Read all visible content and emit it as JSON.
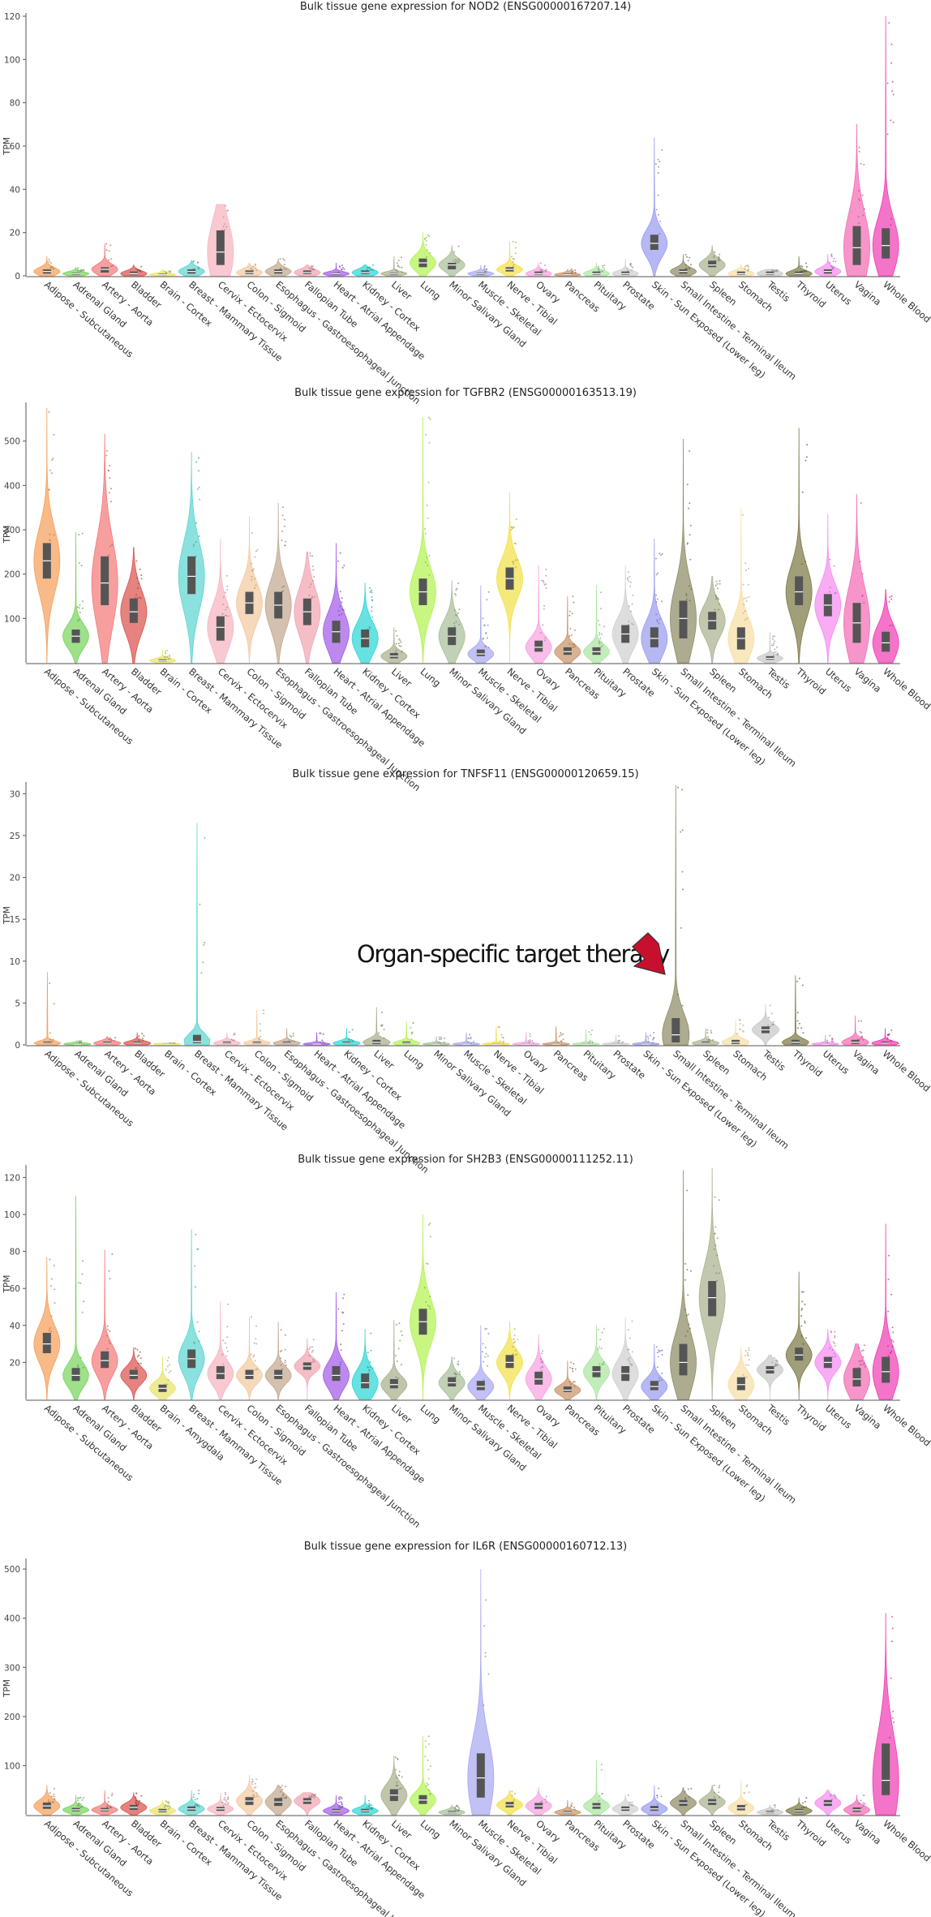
{
  "chart_data": [
    {
      "type": "violin",
      "title": "Bulk tissue gene expression for NOD2 (ENSG00000167207.14)",
      "ylabel": "TPM",
      "ylim": [
        0,
        120
      ],
      "yticks": [
        0,
        20,
        40,
        60,
        80,
        100,
        120
      ],
      "categories": [
        "Adipose - Subcutaneous",
        "Adrenal Gland",
        "Artery - Aorta",
        "Bladder",
        "Brain - Cortex",
        "Breast - Mammary Tissue",
        "Cervix - Ectocervix",
        "Colon - Sigmoid",
        "Esophagus - Gastroesophageal Junction",
        "Fallopian Tube",
        "Heart - Atrial Appendage",
        "Kidney - Cortex",
        "Liver",
        "Lung",
        "Minor Salivary Gland",
        "Muscle - Skeletal",
        "Nerve - Tibial",
        "Ovary",
        "Pancreas",
        "Pituitary",
        "Prostate",
        "Skin - Sun Exposed (Lower leg)",
        "Small Intestine - Terminal Ileum",
        "Spleen",
        "Stomach",
        "Testis",
        "Thyroid",
        "Uterus",
        "Vagina",
        "Whole Blood"
      ],
      "colors": [
        "#f5a05a",
        "#7ad35f",
        "#f47a7a",
        "#d9534f",
        "#e8e36a",
        "#5fd6d0",
        "#f7b5c0",
        "#f3c9a0",
        "#c4a890",
        "#f1a6b1",
        "#a35ce8",
        "#2fd6d6",
        "#a8b08a",
        "#b3f252",
        "#a8bf9a",
        "#a9a9f2",
        "#f2e04a",
        "#f8a2e0",
        "#c99467",
        "#aae6a0",
        "#d0d0d0",
        "#9a9cf0",
        "#8f8c65",
        "#a9b38f",
        "#f7dfa6",
        "#c8c8c8",
        "#7d7a45",
        "#f58cf0",
        "#f46cb6",
        "#f03fb4"
      ],
      "medians": [
        2,
        1,
        3,
        1,
        0.5,
        2,
        11,
        1.5,
        2,
        1.5,
        1,
        1.5,
        1,
        6,
        5,
        1,
        3,
        1,
        0.5,
        1,
        1,
        15,
        2,
        5,
        1,
        1,
        1,
        2,
        13,
        14
      ],
      "q1": [
        1,
        0.5,
        1.5,
        0.5,
        0.2,
        1,
        5,
        0.8,
        1,
        0.8,
        0.5,
        0.8,
        0.5,
        4,
        3,
        0.5,
        2,
        0.5,
        0.2,
        0.5,
        0.5,
        12,
        1,
        4,
        0.5,
        0.5,
        0.5,
        1,
        5,
        8
      ],
      "q3": [
        3,
        1.5,
        4,
        2,
        1,
        3,
        21,
        2.5,
        3,
        2.5,
        1.5,
        2.5,
        1.5,
        8,
        6,
        1.5,
        4,
        2,
        1,
        2,
        2,
        19,
        3,
        7,
        2,
        2,
        2,
        3,
        23,
        22
      ],
      "max": [
        9,
        4,
        15,
        5,
        3,
        7,
        33,
        6,
        8,
        5,
        6,
        5,
        9,
        20,
        14,
        5,
        16,
        6,
        3,
        6,
        8,
        64,
        10,
        14,
        5,
        3,
        9,
        10,
        70,
        120
      ]
    },
    {
      "type": "violin",
      "title": "Bulk tissue gene expression for TGFBR2 (ENSG00000163513.19)",
      "ylabel": "TPM",
      "ylim": [
        0,
        580
      ],
      "yticks": [
        100,
        200,
        300,
        400,
        500
      ],
      "categories": [
        "Adipose - Subcutaneous",
        "Adrenal Gland",
        "Artery - Aorta",
        "Bladder",
        "Brain - Cortex",
        "Breast - Mammary Tissue",
        "Cervix - Ectocervix",
        "Colon - Sigmoid",
        "Esophagus - Gastroesophageal Junction",
        "Fallopian Tube",
        "Heart - Atrial Appendage",
        "Kidney - Cortex",
        "Liver",
        "Lung",
        "Minor Salivary Gland",
        "Muscle - Skeletal",
        "Nerve - Tibial",
        "Ovary",
        "Pancreas",
        "Pituitary",
        "Prostate",
        "Skin - Sun Exposed (Lower leg)",
        "Small Intestine - Terminal Ileum",
        "Spleen",
        "Stomach",
        "Testis",
        "Thyroid",
        "Uterus",
        "Vagina",
        "Whole Blood"
      ],
      "colors": [
        "#f5a05a",
        "#7ad35f",
        "#f47a7a",
        "#d9534f",
        "#e8e36a",
        "#5fd6d0",
        "#f7b5c0",
        "#f3c9a0",
        "#c4a890",
        "#f1a6b1",
        "#a35ce8",
        "#2fd6d6",
        "#a8b08a",
        "#b3f252",
        "#a8bf9a",
        "#a9a9f2",
        "#f2e04a",
        "#f8a2e0",
        "#c99467",
        "#aae6a0",
        "#d0d0d0",
        "#9a9cf0",
        "#8f8c65",
        "#a9b38f",
        "#f7dfa6",
        "#c8c8c8",
        "#7d7a45",
        "#f58cf0",
        "#f46cb6",
        "#f03fb4"
      ],
      "medians": [
        230,
        60,
        180,
        115,
        5,
        195,
        80,
        135,
        130,
        115,
        70,
        55,
        15,
        160,
        60,
        20,
        190,
        35,
        25,
        25,
        65,
        55,
        100,
        95,
        55,
        10,
        160,
        130,
        90,
        45
      ],
      "q1": [
        190,
        45,
        130,
        90,
        3,
        155,
        50,
        110,
        100,
        85,
        45,
        35,
        10,
        130,
        40,
        15,
        165,
        25,
        18,
        18,
        45,
        35,
        55,
        75,
        30,
        7,
        130,
        105,
        45,
        25
      ],
      "q3": [
        270,
        75,
        240,
        145,
        8,
        240,
        105,
        160,
        160,
        145,
        95,
        75,
        22,
        190,
        80,
        30,
        215,
        50,
        35,
        35,
        85,
        80,
        140,
        115,
        80,
        15,
        195,
        155,
        135,
        70
      ],
      "max": [
        575,
        295,
        515,
        260,
        30,
        475,
        280,
        330,
        360,
        250,
        270,
        180,
        80,
        555,
        185,
        175,
        385,
        220,
        150,
        175,
        220,
        280,
        505,
        195,
        350,
        70,
        530,
        335,
        380,
        165
      ]
    },
    {
      "type": "violin",
      "title": "Bulk tissue gene expression for TNFSF11 (ENSG00000120659.15)",
      "ylabel": "TPM",
      "ylim": [
        0,
        31
      ],
      "yticks": [
        0,
        5,
        10,
        15,
        20,
        25,
        30
      ],
      "categories": [
        "Adipose - Subcutaneous",
        "Adrenal Gland",
        "Artery - Aorta",
        "Bladder",
        "Brain - Cortex",
        "Breast - Mammary Tissue",
        "Cervix - Ectocervix",
        "Colon - Sigmoid",
        "Esophagus - Gastroesophageal Junction",
        "Heart - Atrial Appendage",
        "Kidney - Cortex",
        "Liver",
        "Lung",
        "Minor Salivary Gland",
        "Muscle - Skeletal",
        "Nerve - Tibial",
        "Ovary",
        "Pancreas",
        "Pituitary",
        "Prostate",
        "Skin - Sun Exposed (Lower leg)",
        "Small Intestine - Terminal Ileum",
        "Spleen",
        "Stomach",
        "Testis",
        "Thyroid",
        "Uterus",
        "Vagina",
        "Whole Blood"
      ],
      "colors": [
        "#f5a05a",
        "#7ad35f",
        "#f47a7a",
        "#d9534f",
        "#e8e36a",
        "#5fd6d0",
        "#f7b5c0",
        "#f3c9a0",
        "#c4a890",
        "#a35ce8",
        "#2fd6d6",
        "#a8b08a",
        "#b3f252",
        "#a8bf9a",
        "#a9a9f2",
        "#f2e04a",
        "#f8a2e0",
        "#c99467",
        "#aae6a0",
        "#d0d0d0",
        "#9a9cf0",
        "#8f8c65",
        "#a9b38f",
        "#f7dfa6",
        "#c8c8c8",
        "#7d7a45",
        "#f58cf0",
        "#f46cb6",
        "#f03fb4"
      ],
      "medians": [
        0.2,
        0.1,
        0.2,
        0.2,
        0.1,
        0.4,
        0.2,
        0.2,
        0.2,
        0.1,
        0.2,
        0.3,
        0.2,
        0.1,
        0.1,
        0.1,
        0.1,
        0.1,
        0.1,
        0.1,
        0.1,
        1.2,
        0.2,
        0.3,
        1.8,
        0.3,
        0.1,
        0.3,
        0.2
      ],
      "q1": [
        0.1,
        0.05,
        0.1,
        0.1,
        0.05,
        0.2,
        0.1,
        0.1,
        0.1,
        0.05,
        0.1,
        0.1,
        0.1,
        0.05,
        0.05,
        0.05,
        0.05,
        0.05,
        0.05,
        0.05,
        0.05,
        0.3,
        0.1,
        0.1,
        1.4,
        0.1,
        0.05,
        0.1,
        0.1
      ],
      "q3": [
        0.4,
        0.2,
        0.4,
        0.4,
        0.2,
        1.2,
        0.4,
        0.4,
        0.4,
        0.2,
        0.4,
        0.6,
        0.4,
        0.2,
        0.2,
        0.2,
        0.2,
        0.2,
        0.2,
        0.2,
        0.2,
        3.2,
        0.4,
        0.6,
        2.2,
        0.6,
        0.2,
        0.6,
        0.4
      ],
      "max": [
        8.7,
        0.5,
        1,
        1.5,
        0.2,
        26.5,
        1.5,
        4.2,
        2,
        1.5,
        2,
        4.5,
        2.8,
        1,
        1.5,
        2.2,
        1.5,
        2.2,
        1.8,
        1.2,
        1.5,
        31,
        2,
        3,
        4.8,
        8.3,
        1.2,
        3.5,
        2
      ]
    },
    {
      "type": "violin",
      "title": "Bulk tissue gene expression for SH2B3 (ENSG00000111252.11)",
      "ylabel": "TPM",
      "ylim": [
        0,
        125
      ],
      "yticks": [
        20,
        40,
        60,
        80,
        100,
        120
      ],
      "categories": [
        "Adipose - Subcutaneous",
        "Adrenal Gland",
        "Artery - Aorta",
        "Bladder",
        "Brain - Amygdala",
        "Breast - Mammary Tissue",
        "Cervix - Ectocervix",
        "Colon - Sigmoid",
        "Esophagus - Gastroesophageal Junction",
        "Fallopian Tube",
        "Heart - Atrial Appendage",
        "Kidney - Cortex",
        "Liver",
        "Lung",
        "Minor Salivary Gland",
        "Muscle - Skeletal",
        "Nerve - Tibial",
        "Ovary",
        "Pancreas",
        "Pituitary",
        "Prostate",
        "Skin - Sun Exposed (Lower leg)",
        "Small Intestine - Terminal Ileum",
        "Spleen",
        "Stomach",
        "Testis",
        "Thyroid",
        "Uterus",
        "Vagina",
        "Whole Blood"
      ],
      "colors": [
        "#f5a05a",
        "#7ad35f",
        "#f47a7a",
        "#d9534f",
        "#e8e36a",
        "#5fd6d0",
        "#f7b5c0",
        "#f3c9a0",
        "#c4a890",
        "#f1a6b1",
        "#a35ce8",
        "#2fd6d6",
        "#a8b08a",
        "#b3f252",
        "#a8bf9a",
        "#a9a9f2",
        "#f2e04a",
        "#f8a2e0",
        "#c99467",
        "#aae6a0",
        "#d0d0d0",
        "#9a9cf0",
        "#8f8c65",
        "#a9b38f",
        "#f7dfa6",
        "#c8c8c8",
        "#7d7a45",
        "#f58cf0",
        "#f46cb6",
        "#f03fb4"
      ],
      "medians": [
        30,
        13,
        21,
        13,
        6,
        22,
        14,
        13,
        13,
        18,
        13,
        9,
        8,
        42,
        9,
        7,
        20,
        11,
        5,
        15,
        14,
        7,
        20,
        55,
        8,
        16,
        24,
        20,
        11,
        15
      ],
      "q1": [
        25,
        10,
        17,
        11,
        4,
        17,
        11,
        11,
        11,
        16,
        10,
        6,
        6,
        35,
        7,
        5,
        17,
        8,
        4,
        12,
        10,
        5,
        13,
        45,
        5,
        14,
        21,
        17,
        7,
        9
      ],
      "q3": [
        36,
        17,
        26,
        16,
        8,
        27,
        18,
        16,
        16,
        20,
        18,
        14,
        11,
        49,
        12,
        10,
        24,
        15,
        7,
        18,
        18,
        10,
        30,
        64,
        12,
        18,
        28,
        23,
        17,
        23
      ],
      "max": [
        77,
        110,
        81,
        28,
        23,
        92,
        53,
        45,
        42,
        33,
        58,
        38,
        43,
        100,
        23,
        40,
        42,
        35,
        21,
        40,
        44,
        30,
        124,
        126,
        28,
        24,
        69,
        38,
        30,
        95
      ]
    },
    {
      "type": "violin",
      "title": "Bulk tissue gene expression for IL6R (ENSG00000160712.13)",
      "ylabel": "TPM",
      "ylim": [
        0,
        515
      ],
      "yticks": [
        100,
        200,
        300,
        400,
        500
      ],
      "categories": [
        "Adipose - Subcutaneous",
        "Adrenal Gland",
        "Artery - Aorta",
        "Bladder",
        "Brain - Cortex",
        "Breast - Mammary Tissue",
        "Cervix - Ectocervix",
        "Colon - Sigmoid",
        "Esophagus - Gastroesophageal Junction",
        "Fallopian Tube",
        "Heart - Atrial Appendage",
        "Kidney - Cortex",
        "Liver",
        "Lung",
        "Minor Salivary Gland",
        "Muscle - Skeletal",
        "Nerve - Tibial",
        "Ovary",
        "Pancreas",
        "Pituitary",
        "Prostate",
        "Skin - Sun Exposed (Lower leg)",
        "Small Intestine - Terminal Ileum",
        "Spleen",
        "Stomach",
        "Testis",
        "Thyroid",
        "Uterus",
        "Vagina",
        "Whole Blood"
      ],
      "colors": [
        "#f5a05a",
        "#7ad35f",
        "#f47a7a",
        "#d9534f",
        "#e8e36a",
        "#5fd6d0",
        "#f7b5c0",
        "#f3c9a0",
        "#c4a890",
        "#f1a6b1",
        "#a35ce8",
        "#2fd6d6",
        "#a8b08a",
        "#b3f252",
        "#a8bf9a",
        "#a9a9f2",
        "#f2e04a",
        "#f8a2e0",
        "#c99467",
        "#aae6a0",
        "#d0d0d0",
        "#9a9cf0",
        "#8f8c65",
        "#a9b38f",
        "#f7dfa6",
        "#c8c8c8",
        "#7d7a45",
        "#f58cf0",
        "#f46cb6",
        "#f03fb4"
      ],
      "medians": [
        18,
        10,
        10,
        15,
        8,
        12,
        12,
        28,
        26,
        28,
        8,
        8,
        40,
        30,
        5,
        75,
        20,
        18,
        5,
        18,
        12,
        12,
        24,
        26,
        14,
        5,
        8,
        24,
        10,
        70
      ],
      "q1": [
        12,
        7,
        7,
        10,
        5,
        8,
        8,
        20,
        18,
        22,
        5,
        5,
        28,
        22,
        3,
        35,
        15,
        12,
        3,
        12,
        8,
        8,
        18,
        20,
        9,
        3,
        5,
        18,
        6,
        40
      ],
      "q3": [
        25,
        14,
        14,
        20,
        12,
        17,
        16,
        36,
        34,
        34,
        12,
        12,
        52,
        40,
        8,
        125,
        26,
        24,
        8,
        24,
        17,
        18,
        30,
        32,
        20,
        8,
        12,
        30,
        15,
        145
      ],
      "max": [
        60,
        40,
        50,
        45,
        30,
        50,
        45,
        80,
        60,
        45,
        40,
        40,
        120,
        160,
        20,
        500,
        50,
        55,
        30,
        110,
        40,
        60,
        55,
        60,
        70,
        20,
        35,
        50,
        40,
        410
      ]
    }
  ],
  "annotation": {
    "text": "Organ-specific target therapy",
    "arrow_color": "#c8102e"
  }
}
